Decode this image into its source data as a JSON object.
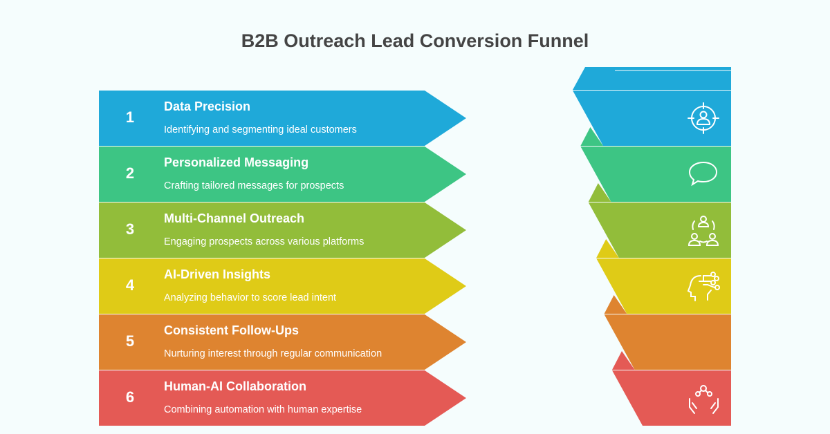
{
  "title": "B2B Outreach Lead Conversion Funnel",
  "stages": [
    {
      "number": "1",
      "title": "Data Precision",
      "description": "Identifying and segmenting ideal customers",
      "color": "#1fa9d9",
      "icon": "target-user-icon"
    },
    {
      "number": "2",
      "title": "Personalized Messaging",
      "description": "Crafting tailored messages for prospects",
      "color": "#3dc584",
      "icon": "speech-bubble-icon"
    },
    {
      "number": "3",
      "title": "Multi-Channel Outreach",
      "description": "Engaging prospects across various platforms",
      "color": "#92bd3a",
      "icon": "people-network-icon"
    },
    {
      "number": "4",
      "title": "AI-Driven Insights",
      "description": "Analyzing behavior to score lead intent",
      "color": "#dfcb17",
      "icon": "ai-head-icon"
    },
    {
      "number": "5",
      "title": "Consistent Follow-Ups",
      "description": "Nurturing interest through regular communication",
      "color": "#de8430",
      "icon": "none"
    },
    {
      "number": "6",
      "title": "Human-AI Collaboration",
      "description": "Combining automation with human expertise",
      "color": "#e45a55",
      "icon": "hands-network-icon"
    }
  ]
}
